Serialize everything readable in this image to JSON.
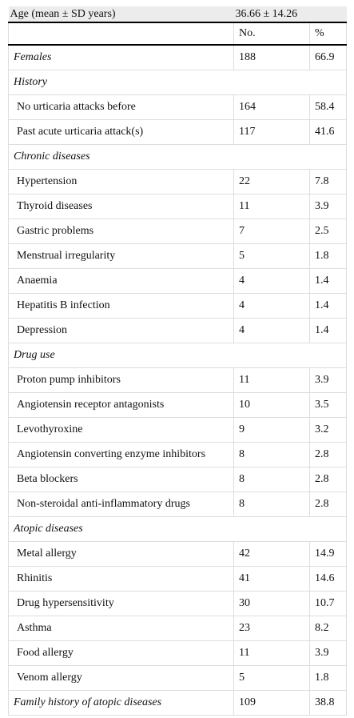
{
  "table": {
    "age_row": [
      "Age (mean ± SD years)",
      "36.66 ± 14.26"
    ],
    "header": [
      "No.",
      "%"
    ],
    "rows": [
      {
        "label": "Females",
        "values": [
          "188",
          "66.9"
        ]
      },
      {
        "label": "History",
        "items": [
          [
            "No urticaria attacks before",
            "164",
            "58.4"
          ],
          [
            "Past acute urticaria attack(s)",
            "117",
            "41.6"
          ]
        ]
      },
      {
        "label": "Chronic diseases",
        "items": [
          [
            "Hypertension",
            "22",
            "7.8"
          ],
          [
            "Thyroid diseases",
            "11",
            "3.9"
          ],
          [
            "Gastric problems",
            "7",
            "2.5"
          ],
          [
            "Menstrual irregularity",
            "5",
            "1.8"
          ],
          [
            "Anaemia",
            "4",
            "1.4"
          ],
          [
            "Hepatitis B infection",
            "4",
            "1.4"
          ],
          [
            "Depression",
            "4",
            "1.4"
          ]
        ]
      },
      {
        "label": "Drug use",
        "items": [
          [
            "Proton pump inhibitors",
            "11",
            "3.9"
          ],
          [
            "Angiotensin receptor antagonists",
            "10",
            "3.5"
          ],
          [
            "Levothyroxine",
            "9",
            "3.2"
          ],
          [
            "Angiotensin converting enzyme inhibitors",
            "8",
            "2.8"
          ],
          [
            "Beta blockers",
            "8",
            "2.8"
          ],
          [
            "Non-steroidal anti-inflammatory drugs",
            "8",
            "2.8"
          ]
        ]
      },
      {
        "label": "Atopic diseases",
        "items": [
          [
            "Metal allergy",
            "42",
            "14.9"
          ],
          [
            "Rhinitis",
            "41",
            "14.6"
          ],
          [
            "Drug hypersensitivity",
            "30",
            "10.7"
          ],
          [
            "Asthma",
            "23",
            "8.2"
          ],
          [
            "Food allergy",
            "11",
            "3.9"
          ],
          [
            "Venom allergy",
            "5",
            "1.8"
          ]
        ]
      },
      {
        "label": "Family history of atopic diseases",
        "values": [
          "109",
          "38.8"
        ]
      }
    ]
  }
}
